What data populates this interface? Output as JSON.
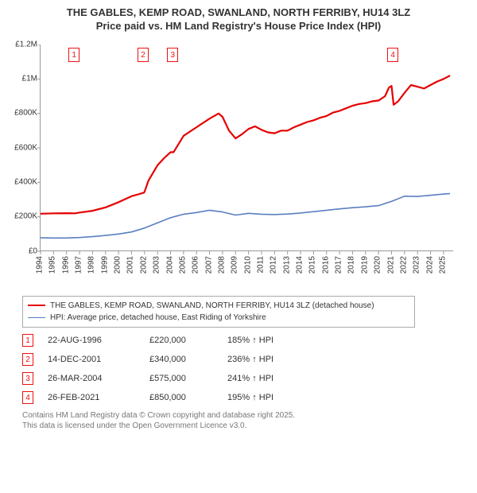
{
  "title_line1": "THE GABLES, KEMP ROAD, SWANLAND, NORTH FERRIBY, HU14 3LZ",
  "title_line2": "Price paid vs. HM Land Registry's House Price Index (HPI)",
  "chart": {
    "type": "line",
    "background_color": "#ffffff",
    "axis_color": "#999999",
    "tick_fontsize": 10,
    "x": {
      "min": 1994,
      "max": 2025.8,
      "ticks": [
        1994,
        1995,
        1996,
        1997,
        1998,
        1999,
        2000,
        2001,
        2002,
        2003,
        2004,
        2005,
        2006,
        2007,
        2008,
        2009,
        2010,
        2011,
        2012,
        2013,
        2014,
        2015,
        2016,
        2017,
        2018,
        2019,
        2020,
        2021,
        2022,
        2023,
        2024,
        2025
      ]
    },
    "y": {
      "min": 0,
      "max": 1200000,
      "ticks": [
        0,
        200000,
        400000,
        600000,
        800000,
        1000000,
        1200000
      ],
      "tick_labels": [
        "£0",
        "£200K",
        "£400K",
        "£600K",
        "£800K",
        "£1M",
        "£1.2M"
      ]
    },
    "series": [
      {
        "name": "property",
        "label": "THE GABLES, KEMP ROAD, SWANLAND, NORTH FERRIBY, HU14 3LZ (detached house)",
        "color": "#e60000",
        "width": 2.2,
        "points": [
          [
            1994,
            218000
          ],
          [
            1995,
            220000
          ],
          [
            1996,
            221000
          ],
          [
            1996.64,
            220000
          ],
          [
            1997,
            225000
          ],
          [
            1998,
            235000
          ],
          [
            1999,
            255000
          ],
          [
            2000,
            285000
          ],
          [
            2001,
            320000
          ],
          [
            2001.5,
            330000
          ],
          [
            2001.95,
            340000
          ],
          [
            2002,
            345000
          ],
          [
            2002.3,
            410000
          ],
          [
            2003,
            500000
          ],
          [
            2003.5,
            540000
          ],
          [
            2004,
            575000
          ],
          [
            2004.23,
            575000
          ],
          [
            2005,
            670000
          ],
          [
            2006,
            720000
          ],
          [
            2007,
            770000
          ],
          [
            2007.7,
            800000
          ],
          [
            2008,
            780000
          ],
          [
            2008.5,
            700000
          ],
          [
            2009,
            655000
          ],
          [
            2009.5,
            680000
          ],
          [
            2010,
            710000
          ],
          [
            2010.5,
            725000
          ],
          [
            2011,
            705000
          ],
          [
            2011.5,
            690000
          ],
          [
            2012,
            685000
          ],
          [
            2012.5,
            700000
          ],
          [
            2013,
            700000
          ],
          [
            2013.5,
            720000
          ],
          [
            2014,
            735000
          ],
          [
            2014.5,
            750000
          ],
          [
            2015,
            760000
          ],
          [
            2015.5,
            775000
          ],
          [
            2016,
            785000
          ],
          [
            2016.5,
            805000
          ],
          [
            2017,
            815000
          ],
          [
            2017.5,
            830000
          ],
          [
            2018,
            845000
          ],
          [
            2018.5,
            855000
          ],
          [
            2019,
            860000
          ],
          [
            2019.5,
            870000
          ],
          [
            2020,
            875000
          ],
          [
            2020.5,
            900000
          ],
          [
            2020.8,
            950000
          ],
          [
            2021,
            960000
          ],
          [
            2021.16,
            850000
          ],
          [
            2021.5,
            870000
          ],
          [
            2022,
            920000
          ],
          [
            2022.5,
            965000
          ],
          [
            2023,
            955000
          ],
          [
            2023.5,
            945000
          ],
          [
            2024,
            965000
          ],
          [
            2024.5,
            985000
          ],
          [
            2025,
            1000000
          ],
          [
            2025.5,
            1020000
          ]
        ]
      },
      {
        "name": "hpi",
        "label": "HPI: Average price, detached house, East Riding of Yorkshire",
        "color": "#5a7fc0",
        "width": 1.6,
        "points": [
          [
            1994,
            78000
          ],
          [
            1995,
            77000
          ],
          [
            1996,
            77000
          ],
          [
            1997,
            80000
          ],
          [
            1998,
            85000
          ],
          [
            1999,
            92000
          ],
          [
            2000,
            100000
          ],
          [
            2001,
            112000
          ],
          [
            2002,
            135000
          ],
          [
            2003,
            165000
          ],
          [
            2004,
            195000
          ],
          [
            2005,
            215000
          ],
          [
            2006,
            225000
          ],
          [
            2007,
            238000
          ],
          [
            2008,
            228000
          ],
          [
            2009,
            210000
          ],
          [
            2010,
            220000
          ],
          [
            2011,
            215000
          ],
          [
            2012,
            213000
          ],
          [
            2013,
            216000
          ],
          [
            2014,
            222000
          ],
          [
            2015,
            230000
          ],
          [
            2016,
            238000
          ],
          [
            2017,
            246000
          ],
          [
            2018,
            253000
          ],
          [
            2019,
            258000
          ],
          [
            2020,
            265000
          ],
          [
            2021,
            290000
          ],
          [
            2022,
            320000
          ],
          [
            2023,
            318000
          ],
          [
            2024,
            325000
          ],
          [
            2025,
            332000
          ],
          [
            2025.5,
            335000
          ]
        ]
      }
    ],
    "markers": [
      {
        "n": "1",
        "year": 1996.64
      },
      {
        "n": "2",
        "year": 2001.95
      },
      {
        "n": "3",
        "year": 2004.23
      },
      {
        "n": "4",
        "year": 2021.16
      }
    ]
  },
  "legend": {
    "border_color": "#aaaaaa",
    "fontsize": 10,
    "items": [
      {
        "color": "#e60000",
        "width": 2.2,
        "label": "THE GABLES, KEMP ROAD, SWANLAND, NORTH FERRIBY, HU14 3LZ (detached house)"
      },
      {
        "color": "#5a7fc0",
        "width": 1.6,
        "label": "HPI: Average price, detached house, East Riding of Yorkshire"
      }
    ]
  },
  "sales": [
    {
      "n": "1",
      "date": "22-AUG-1996",
      "price": "£220,000",
      "hpi": "185% ↑ HPI"
    },
    {
      "n": "2",
      "date": "14-DEC-2001",
      "price": "£340,000",
      "hpi": "236% ↑ HPI"
    },
    {
      "n": "3",
      "date": "26-MAR-2004",
      "price": "£575,000",
      "hpi": "241% ↑ HPI"
    },
    {
      "n": "4",
      "date": "26-FEB-2021",
      "price": "£850,000",
      "hpi": "195% ↑ HPI"
    }
  ],
  "footer_line1": "Contains HM Land Registry data © Crown copyright and database right 2025.",
  "footer_line2": "This data is licensed under the Open Government Licence v3.0."
}
